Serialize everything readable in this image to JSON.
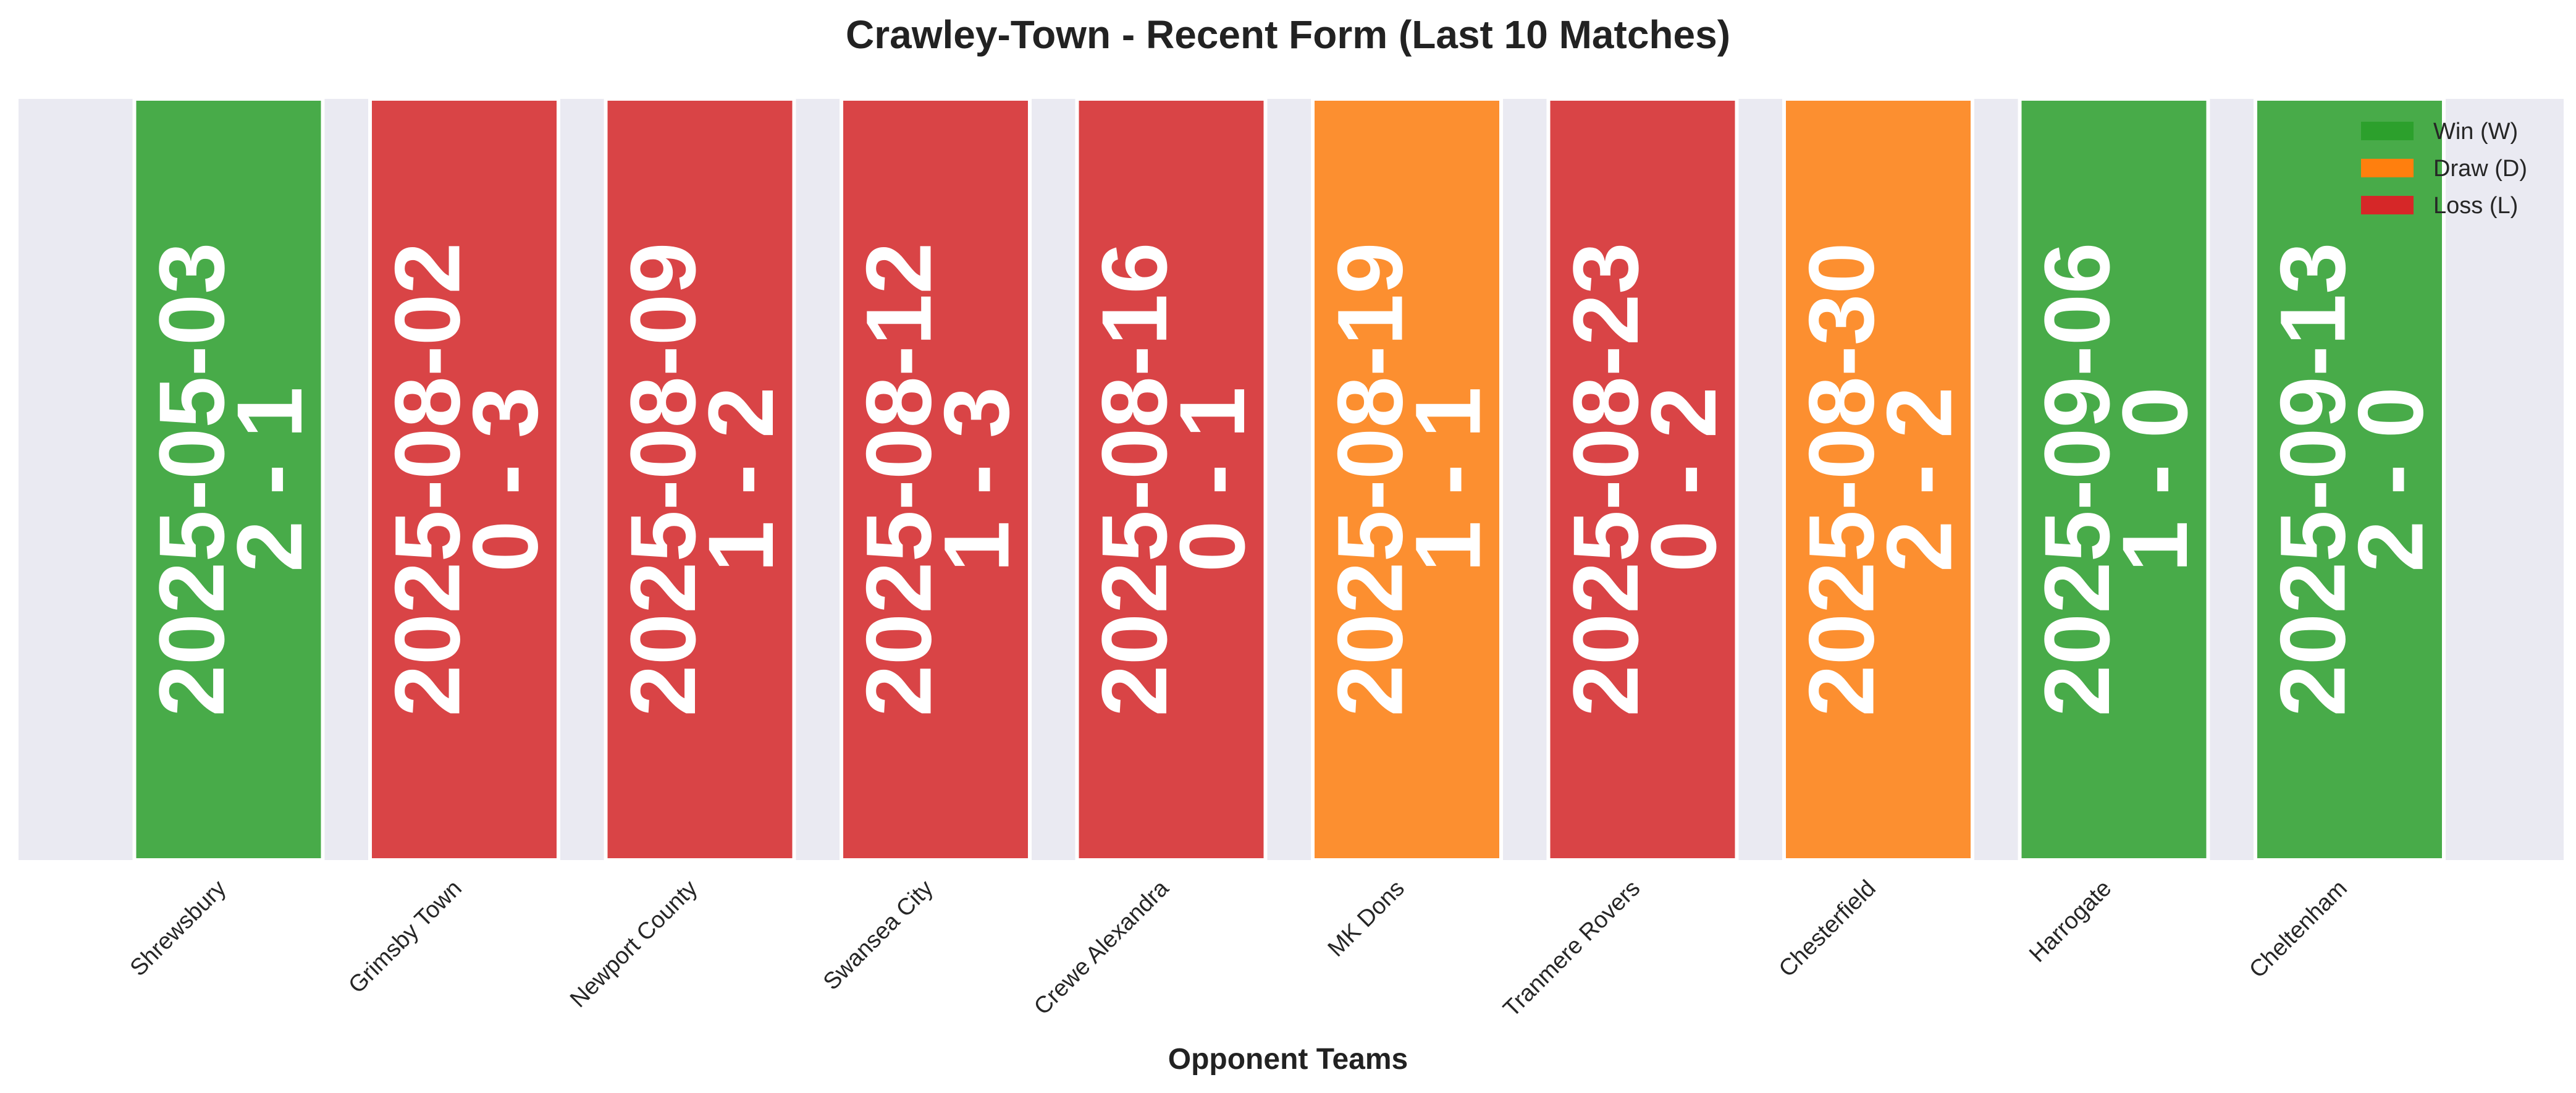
{
  "colors": {
    "win": "#2ca02c",
    "draw": "#ff7f0e",
    "loss": "#d62728",
    "plot_background": "#eaeaf2",
    "bar_edge": "#ffffff",
    "text": "#222222"
  },
  "chart_data": {
    "type": "bar",
    "title": "Crawley-Town - Recent Form (Last 10 Matches)",
    "xlabel": "Opponent Teams",
    "ylabel": "",
    "grid": true,
    "legend_position": "top-right",
    "categories": [
      "Shrewsbury",
      "Grimsby Town",
      "Newport County",
      "Swansea City",
      "Crewe Alexandra",
      "MK Dons",
      "Tranmere Rovers",
      "Chesterfield",
      "Harrogate",
      "Cheltenham"
    ],
    "values": [
      1,
      1,
      1,
      1,
      1,
      1,
      1,
      1,
      1,
      1
    ],
    "ylim": [
      0,
      1
    ],
    "matches": [
      {
        "opponent": "Shrewsbury",
        "date": "2025-05-03",
        "score": "2 - 1",
        "result": "W"
      },
      {
        "opponent": "Grimsby Town",
        "date": "2025-08-02",
        "score": "0 - 3",
        "result": "L"
      },
      {
        "opponent": "Newport County",
        "date": "2025-08-09",
        "score": "1 - 2",
        "result": "L"
      },
      {
        "opponent": "Swansea City",
        "date": "2025-08-12",
        "score": "1 - 3",
        "result": "L"
      },
      {
        "opponent": "Crewe Alexandra",
        "date": "2025-08-16",
        "score": "0 - 1",
        "result": "L"
      },
      {
        "opponent": "MK Dons",
        "date": "2025-08-19",
        "score": "1 - 1",
        "result": "D"
      },
      {
        "opponent": "Tranmere Rovers",
        "date": "2025-08-23",
        "score": "0 - 2",
        "result": "L"
      },
      {
        "opponent": "Chesterfield",
        "date": "2025-08-30",
        "score": "2 - 2",
        "result": "D"
      },
      {
        "opponent": "Harrogate",
        "date": "2025-09-06",
        "score": "1 - 0",
        "result": "W"
      },
      {
        "opponent": "Cheltenham",
        "date": "2025-09-13",
        "score": "2 - 0",
        "result": "W"
      }
    ],
    "legend": [
      {
        "label": "Win (W)",
        "result": "W"
      },
      {
        "label": "Draw (D)",
        "result": "D"
      },
      {
        "label": "Loss (L)",
        "result": "L"
      }
    ]
  }
}
